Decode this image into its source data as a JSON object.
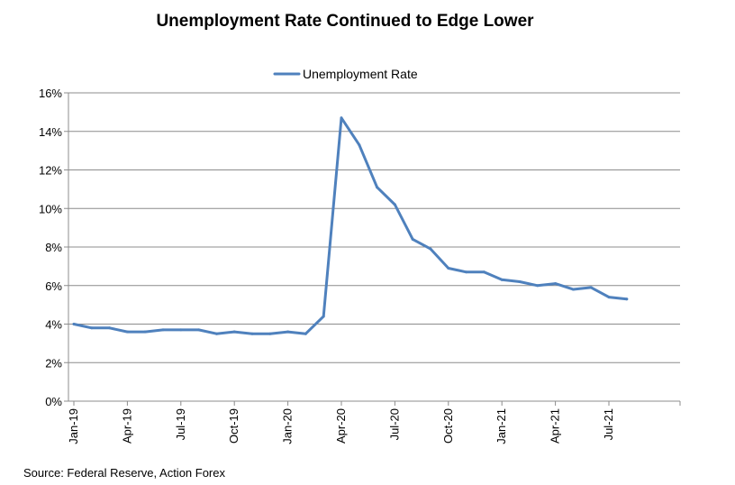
{
  "chart_data": {
    "type": "line",
    "title": "Unemployment Rate Continued to Edge Lower",
    "source": "Source: Federal Reserve, Action Forex",
    "xlabel": "",
    "ylabel": "",
    "ylim": [
      0,
      16
    ],
    "y_ticks": [
      "0%",
      "2%",
      "4%",
      "6%",
      "8%",
      "10%",
      "12%",
      "14%",
      "16%"
    ],
    "x_tick_labels": [
      "Jan-19",
      "Apr-19",
      "Jul-19",
      "Oct-19",
      "Jan-20",
      "Apr-20",
      "Jul-20",
      "Oct-20",
      "Jan-21",
      "Apr-21",
      "Jul-21"
    ],
    "grid": true,
    "legend": "top-center",
    "series_color": "#4f81bd",
    "series": [
      {
        "name": "Unemployment Rate",
        "x": [
          "Jan-19",
          "Feb-19",
          "Mar-19",
          "Apr-19",
          "May-19",
          "Jun-19",
          "Jul-19",
          "Aug-19",
          "Sep-19",
          "Oct-19",
          "Nov-19",
          "Dec-19",
          "Jan-20",
          "Feb-20",
          "Mar-20",
          "Apr-20",
          "May-20",
          "Jun-20",
          "Jul-20",
          "Aug-20",
          "Sep-20",
          "Oct-20",
          "Nov-20",
          "Dec-20",
          "Jan-21",
          "Feb-21",
          "Mar-21",
          "Apr-21",
          "May-21",
          "Jun-21",
          "Jul-21",
          "Aug-21"
        ],
        "values": [
          4.0,
          3.8,
          3.8,
          3.6,
          3.6,
          3.7,
          3.7,
          3.7,
          3.5,
          3.6,
          3.5,
          3.5,
          3.6,
          3.5,
          4.4,
          14.7,
          13.3,
          11.1,
          10.2,
          8.4,
          7.9,
          6.9,
          6.7,
          6.7,
          6.3,
          6.2,
          6.0,
          6.1,
          5.8,
          5.9,
          5.4,
          5.3
        ]
      }
    ]
  }
}
